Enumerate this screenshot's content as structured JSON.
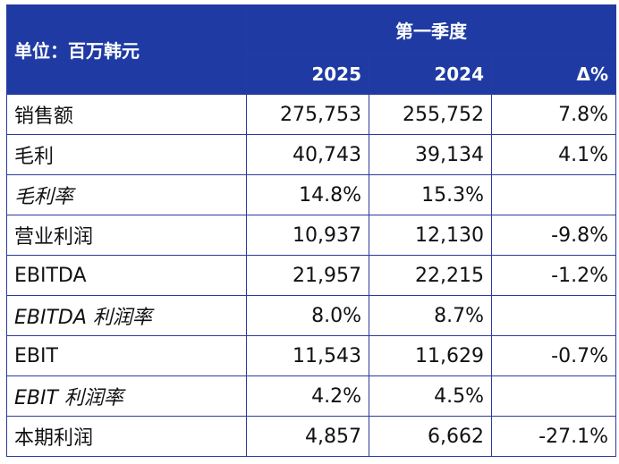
{
  "table": {
    "unit_label": "单位：百万韩元",
    "period_label": "第一季度",
    "columns": [
      "2025",
      "2024",
      "Δ%"
    ],
    "rows": [
      {
        "label": "销售额",
        "v2025": "275,753",
        "v2024": "255,752",
        "delta": "7.8%",
        "italic": false
      },
      {
        "label": "毛利",
        "v2025": "40,743",
        "v2024": "39,134",
        "delta": "4.1%",
        "italic": false
      },
      {
        "label": "毛利率",
        "v2025": "14.8%",
        "v2024": "15.3%",
        "delta": "",
        "italic": true
      },
      {
        "label": "营业利润",
        "v2025": "10,937",
        "v2024": "12,130",
        "delta": "-9.8%",
        "italic": false
      },
      {
        "label": "EBITDA",
        "v2025": "21,957",
        "v2024": "22,215",
        "delta": "-1.2%",
        "italic": false
      },
      {
        "label": "EBITDA 利润率",
        "v2025": "8.0%",
        "v2024": "8.7%",
        "delta": "",
        "italic": true
      },
      {
        "label": "EBIT",
        "v2025": "11,543",
        "v2024": "11,629",
        "delta": "-0.7%",
        "italic": false
      },
      {
        "label": "EBIT 利润率",
        "v2025": "4.2%",
        "v2024": "4.5%",
        "delta": "",
        "italic": true
      },
      {
        "label": "本期利润",
        "v2025": "4,857",
        "v2024": "6,662",
        "delta": "-27.1%",
        "italic": false
      }
    ]
  },
  "colors": {
    "header_bg": "#1f3ba3",
    "border": "#2b3a9e",
    "header_text": "#ffffff"
  }
}
